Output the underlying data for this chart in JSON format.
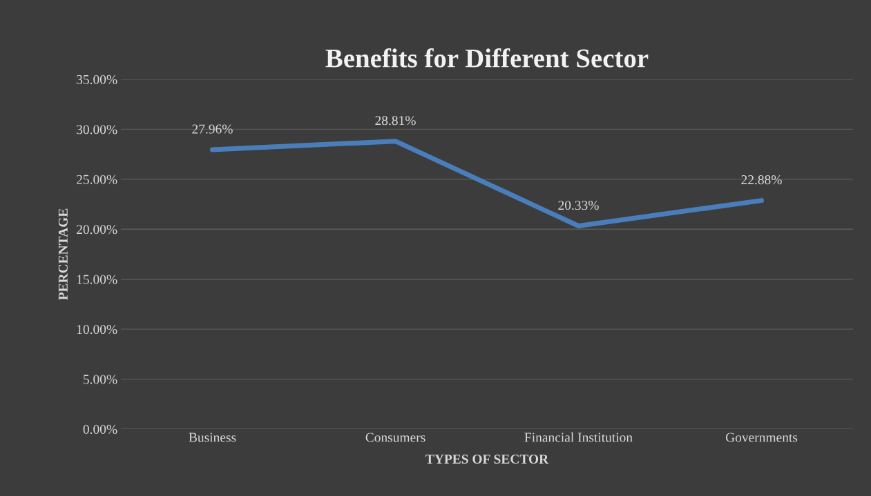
{
  "chart_data": {
    "type": "line",
    "title": "Benefits for Different Sector",
    "xlabel": "TYPES OF SECTOR",
    "ylabel": "PERCENTAGE",
    "categories": [
      "Business",
      "Consumers",
      "Financial Institution",
      "Governments"
    ],
    "series": [
      {
        "color": "#4a7ebb",
        "values": [
          27.96,
          28.81,
          20.33,
          22.88
        ],
        "value_labels": [
          "27.96%",
          "28.81%",
          "20.33%",
          "22.88%"
        ]
      }
    ],
    "ylim": [
      0,
      35
    ],
    "yticks": [
      {
        "value": 0,
        "label": "0.00%"
      },
      {
        "value": 5,
        "label": "5.00%"
      },
      {
        "value": 10,
        "label": "10.00%"
      },
      {
        "value": 15,
        "label": "15.00%"
      },
      {
        "value": 20,
        "label": "20.00%"
      },
      {
        "value": 25,
        "label": "25.00%"
      },
      {
        "value": 30,
        "label": "30.00%"
      },
      {
        "value": 35,
        "label": "35.00%"
      }
    ],
    "grid": "y",
    "marker": "none",
    "line_style": "solid"
  }
}
